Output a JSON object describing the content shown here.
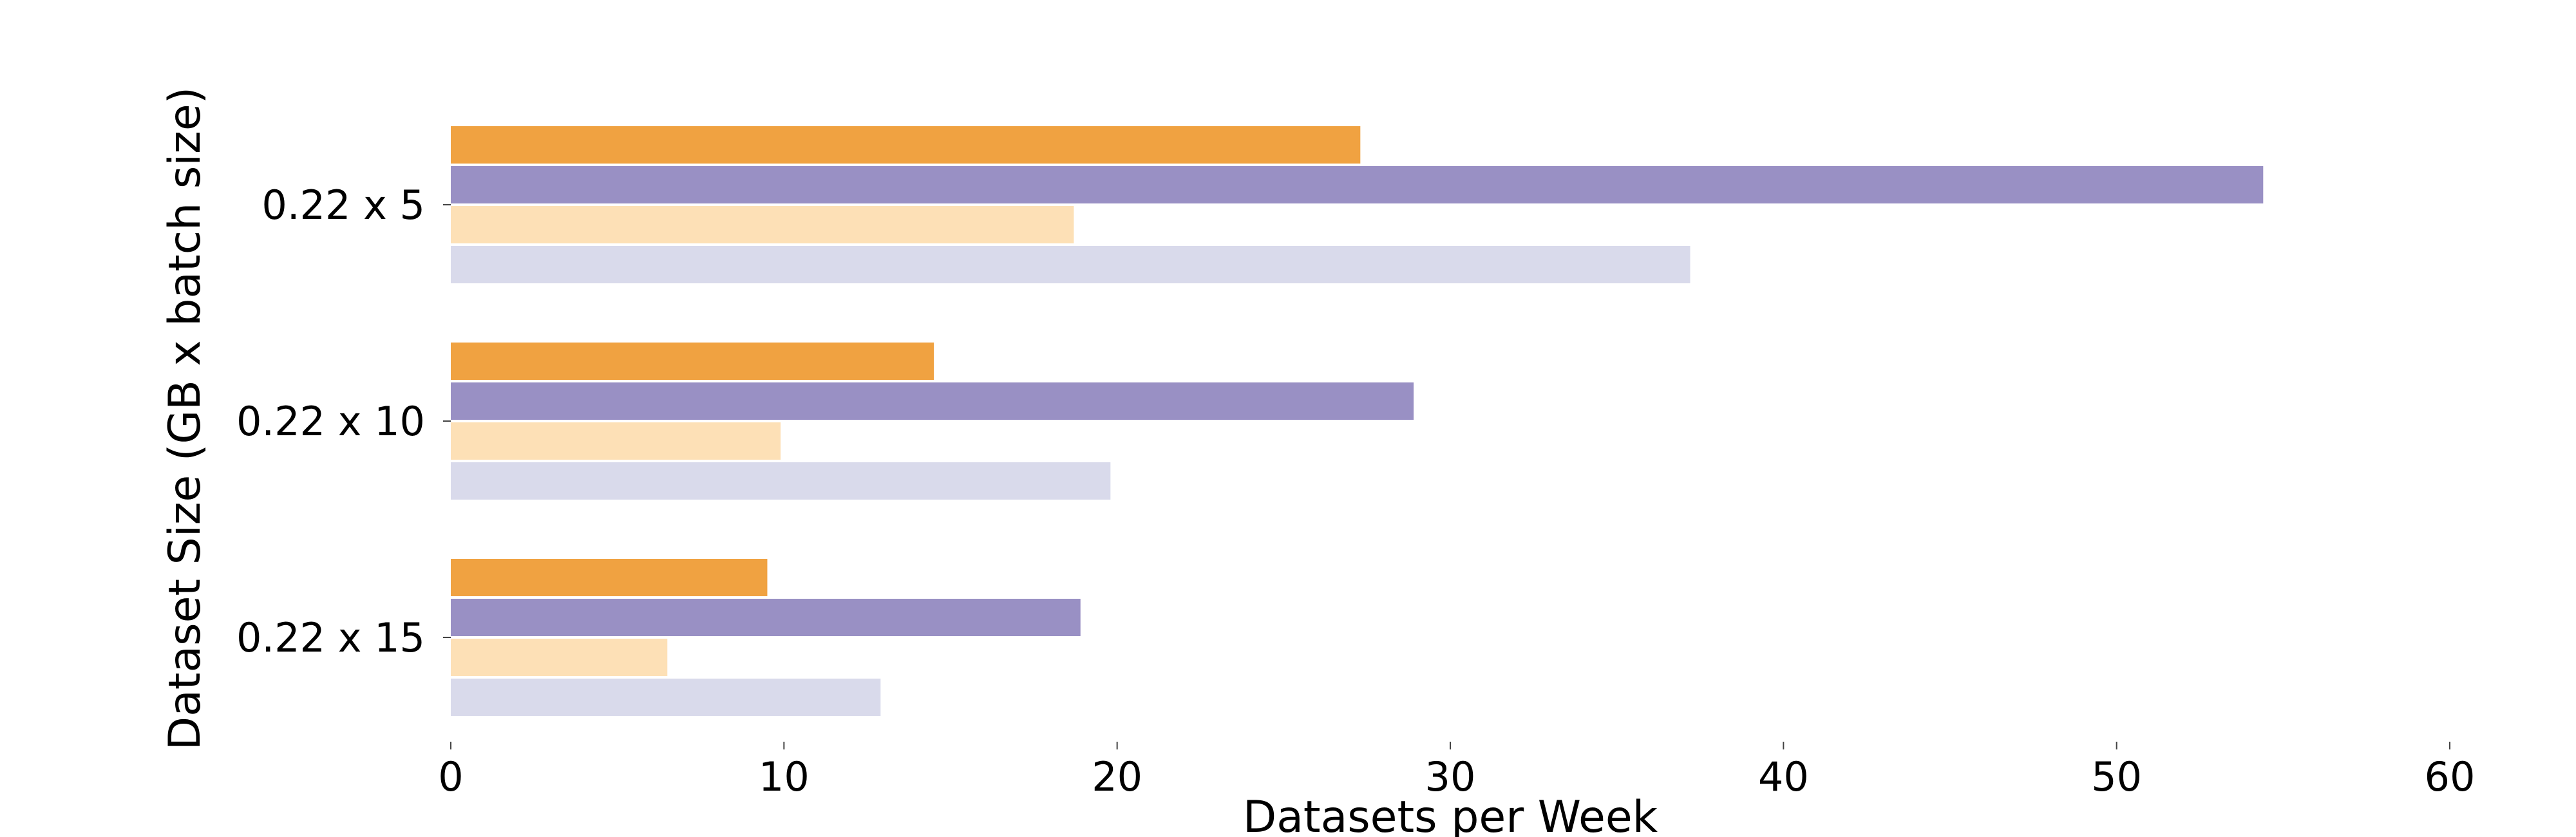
{
  "chart_data": {
    "type": "bar",
    "orientation": "horizontal",
    "title": "",
    "xlabel": "Datasets per Week",
    "ylabel": "Dataset Size (GB x batch size)",
    "categories": [
      "0.22 x 5",
      "0.22 x 10",
      "0.22 x 15"
    ],
    "xlim": [
      0,
      60
    ],
    "xticks": [
      0,
      10,
      20,
      30,
      40,
      50,
      60
    ],
    "grid": false,
    "legend": "none",
    "series": [
      {
        "color": "#f0a241",
        "values": [
          27.3,
          14.5,
          9.5
        ]
      },
      {
        "color": "#9990c4",
        "values": [
          54.4,
          28.9,
          18.9
        ]
      },
      {
        "color": "#fde0b6",
        "values": [
          18.7,
          9.9,
          6.5
        ]
      },
      {
        "color": "#d9daeb",
        "values": [
          37.2,
          19.8,
          12.9
        ]
      }
    ]
  }
}
